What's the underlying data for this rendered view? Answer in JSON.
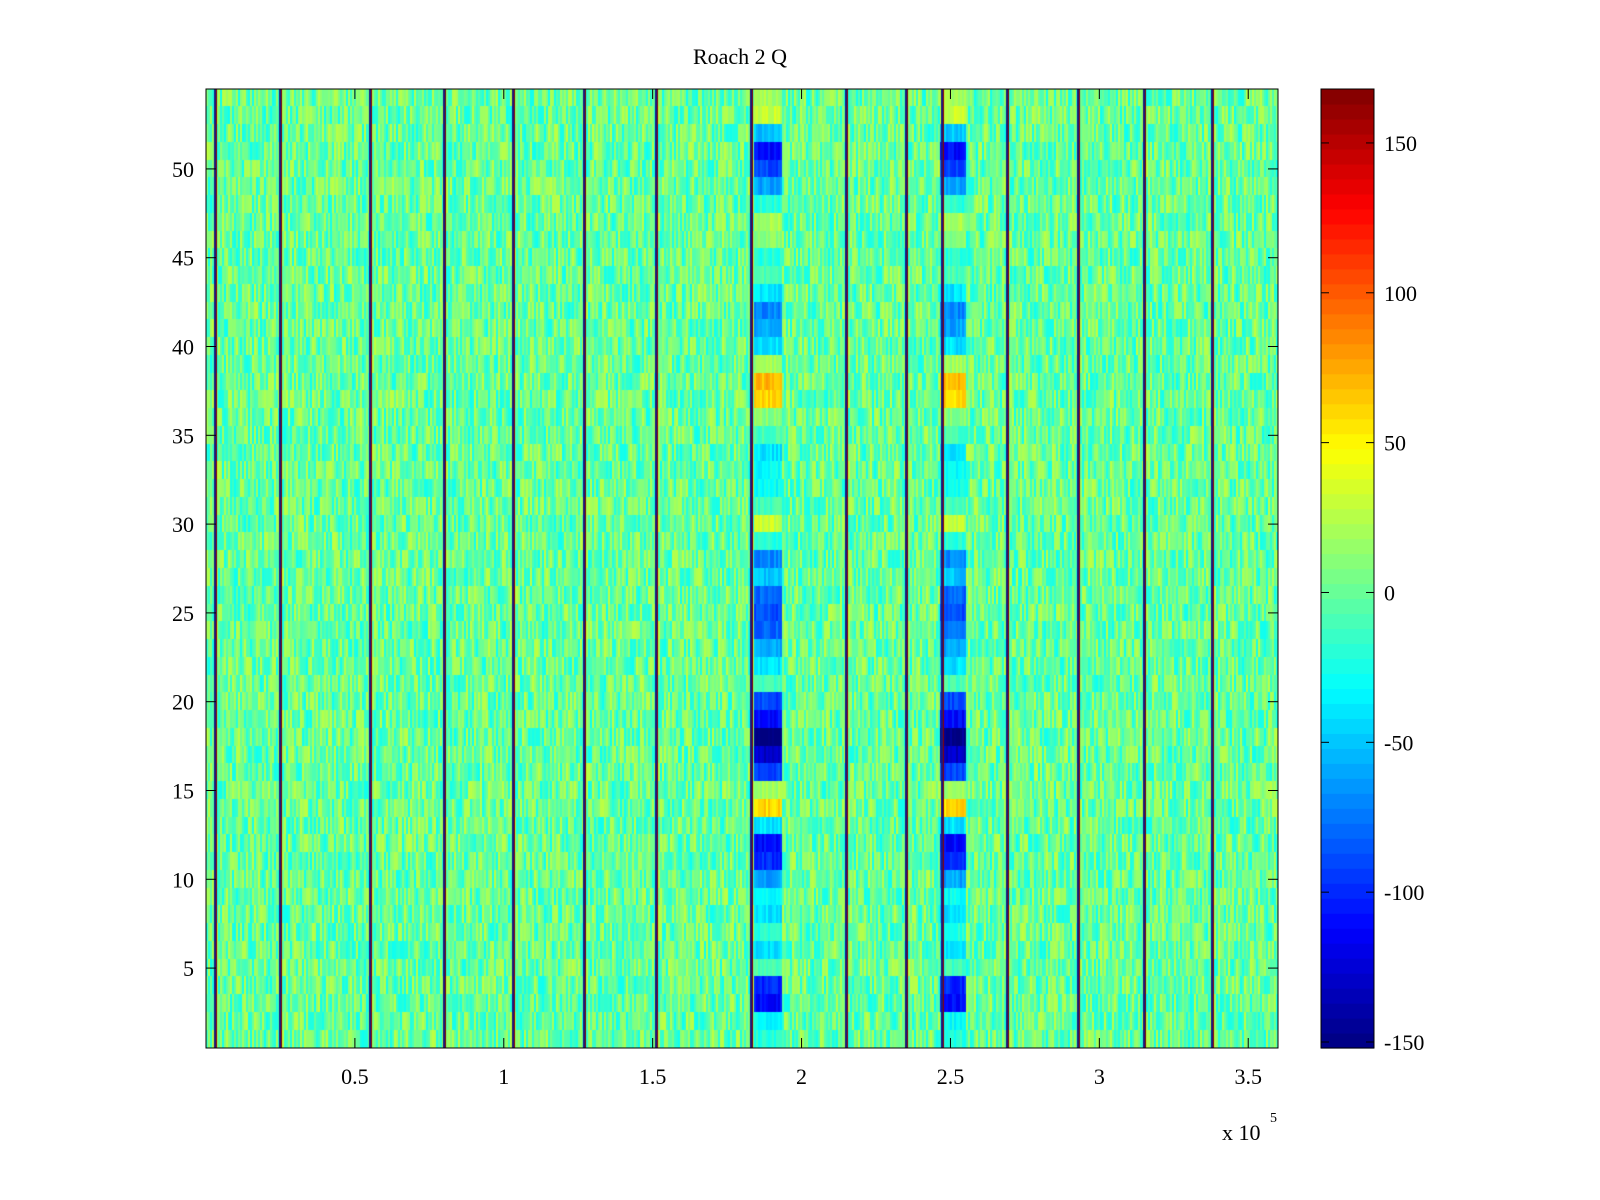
{
  "chart_data": {
    "type": "heatmap",
    "title": "Roach 2 Q",
    "xlabel": "",
    "ylabel": "",
    "x_range": [
      0,
      360000
    ],
    "x_ticks": [
      50000,
      100000,
      150000,
      200000,
      250000,
      300000,
      350000
    ],
    "x_tick_labels": [
      "0.5",
      "1",
      "1.5",
      "2",
      "2.5",
      "3",
      "3.5"
    ],
    "x_exponent_label": "x 10",
    "x_exponent_power": "5",
    "y_range": [
      0.5,
      54.5
    ],
    "y_ticks": [
      5,
      10,
      15,
      20,
      25,
      30,
      35,
      40,
      45,
      50
    ],
    "y_tick_labels": [
      "5",
      "10",
      "15",
      "20",
      "25",
      "30",
      "35",
      "40",
      "45",
      "50"
    ],
    "rows": 54,
    "colormap": "jet",
    "colorbar": {
      "range": [
        -152,
        168
      ],
      "ticks": [
        -150,
        -100,
        -50,
        0,
        50,
        100,
        150
      ],
      "tick_labels": [
        "-150",
        "-100",
        "-50",
        "0",
        "50",
        "100",
        "150"
      ]
    },
    "background_value": 0,
    "noise_amplitude": 28,
    "channel_stripe_x": [
      3000,
      25000,
      55000,
      80000,
      103000,
      127000,
      151000,
      183000,
      215000,
      235000,
      247000,
      269000,
      293000,
      315000,
      338000
    ],
    "feature_columns": [
      {
        "x_range": [
          184000,
          193000
        ],
        "row_values": {
          "1": -20,
          "2": -30,
          "3": -110,
          "4": -100,
          "5": -10,
          "6": -40,
          "7": -20,
          "8": -40,
          "9": -30,
          "10": -60,
          "11": -100,
          "12": -110,
          "13": -40,
          "14": 60,
          "15": 20,
          "16": -90,
          "17": -130,
          "18": -150,
          "19": -110,
          "20": -90,
          "21": -10,
          "22": -40,
          "23": -60,
          "24": -80,
          "25": -90,
          "26": -80,
          "27": -50,
          "28": -70,
          "29": -20,
          "30": 30,
          "31": -10,
          "32": -30,
          "33": -30,
          "34": -40,
          "35": -10,
          "36": 10,
          "37": 60,
          "38": 70,
          "39": 20,
          "40": -40,
          "41": -60,
          "42": -70,
          "43": -40,
          "44": -10,
          "45": -20,
          "46": 10,
          "47": 20,
          "48": -20,
          "49": -60,
          "50": -90,
          "51": -110,
          "52": -50,
          "53": 30,
          "54": 20
        }
      },
      {
        "x_range": [
          246000,
          255000
        ],
        "row_values": {
          "1": -20,
          "2": -30,
          "3": -110,
          "4": -100,
          "5": -10,
          "6": -40,
          "7": -20,
          "8": -40,
          "9": -30,
          "10": -60,
          "11": -100,
          "12": -110,
          "13": -40,
          "14": 60,
          "15": 20,
          "16": -90,
          "17": -130,
          "18": -150,
          "19": -110,
          "20": -90,
          "21": -10,
          "22": -40,
          "23": -60,
          "24": -80,
          "25": -90,
          "26": -80,
          "27": -50,
          "28": -70,
          "29": -20,
          "30": 30,
          "31": -10,
          "32": -30,
          "33": -30,
          "34": -40,
          "35": -10,
          "36": 10,
          "37": 60,
          "38": 70,
          "39": 20,
          "40": -40,
          "41": -60,
          "42": -70,
          "43": -40,
          "44": -10,
          "45": -20,
          "46": 10,
          "47": 20,
          "48": -20,
          "49": -60,
          "50": -90,
          "51": -110,
          "52": -50,
          "53": 30,
          "54": 20
        }
      }
    ]
  }
}
